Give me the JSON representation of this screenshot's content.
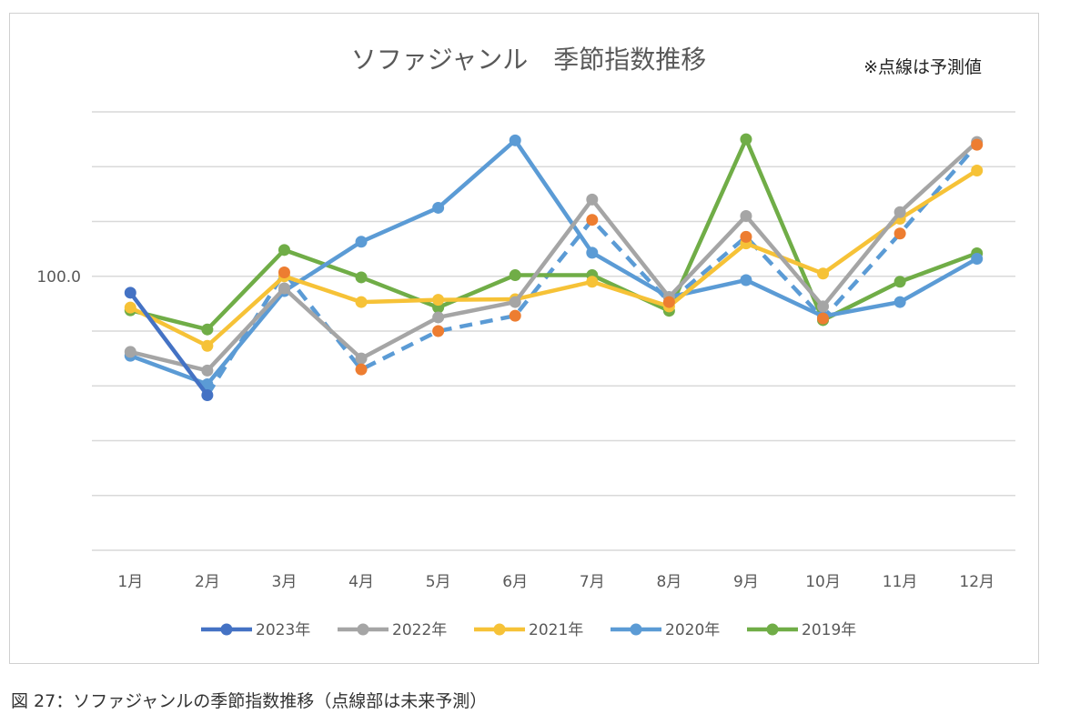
{
  "chart_data": {
    "type": "line",
    "title": "ソファジャンル　季節指数推移",
    "note": "※点線は予測値",
    "categories": [
      "1月",
      "2月",
      "3月",
      "4月",
      "5月",
      "6月",
      "7月",
      "8月",
      "9月",
      "10月",
      "11月",
      "12月"
    ],
    "ylim": [
      50,
      130
    ],
    "y_tick_labels": [
      {
        "value": 100,
        "label": "100.0"
      }
    ],
    "grid_step": 10,
    "grid": true,
    "legend_position": "bottom",
    "series": [
      {
        "name": "2023年",
        "color": "#4472C4",
        "values": [
          97.0,
          78.3,
          null,
          null,
          null,
          null,
          null,
          null,
          null,
          null,
          null,
          null
        ]
      },
      {
        "name": "2022年",
        "color": "#A5A5A5",
        "values": [
          86.2,
          82.8,
          97.8,
          85.0,
          92.5,
          95.3,
          114.0,
          96.2,
          111.0,
          94.5,
          111.7,
          124.5
        ]
      },
      {
        "name": "2021年",
        "color": "#F6C237",
        "values": [
          94.3,
          87.3,
          100.0,
          95.3,
          95.7,
          95.8,
          99.0,
          94.5,
          106.0,
          100.5,
          110.5,
          119.3
        ]
      },
      {
        "name": "2020年",
        "color": "#5B9BD5",
        "values": [
          85.5,
          80.3,
          97.3,
          106.3,
          112.5,
          124.8,
          104.3,
          96.2,
          99.3,
          92.7,
          95.3,
          103.2
        ]
      },
      {
        "name": "2019年",
        "color": "#70AD47",
        "values": [
          93.8,
          90.3,
          104.8,
          99.8,
          94.3,
          100.2,
          100.2,
          93.7,
          125.0,
          92.0,
          99.0,
          104.2
        ]
      }
    ],
    "forecast": {
      "line_color": "#5B9BD5",
      "marker_color": "#ED7D31",
      "dashed": true,
      "values": [
        null,
        null,
        100.7,
        83.0,
        90.0,
        92.8,
        110.3,
        95.3,
        107.2,
        92.3,
        107.8,
        124.0
      ]
    }
  },
  "caption": "図 27：ソファジャンルの季節指数推移（点線部は未来予測）"
}
